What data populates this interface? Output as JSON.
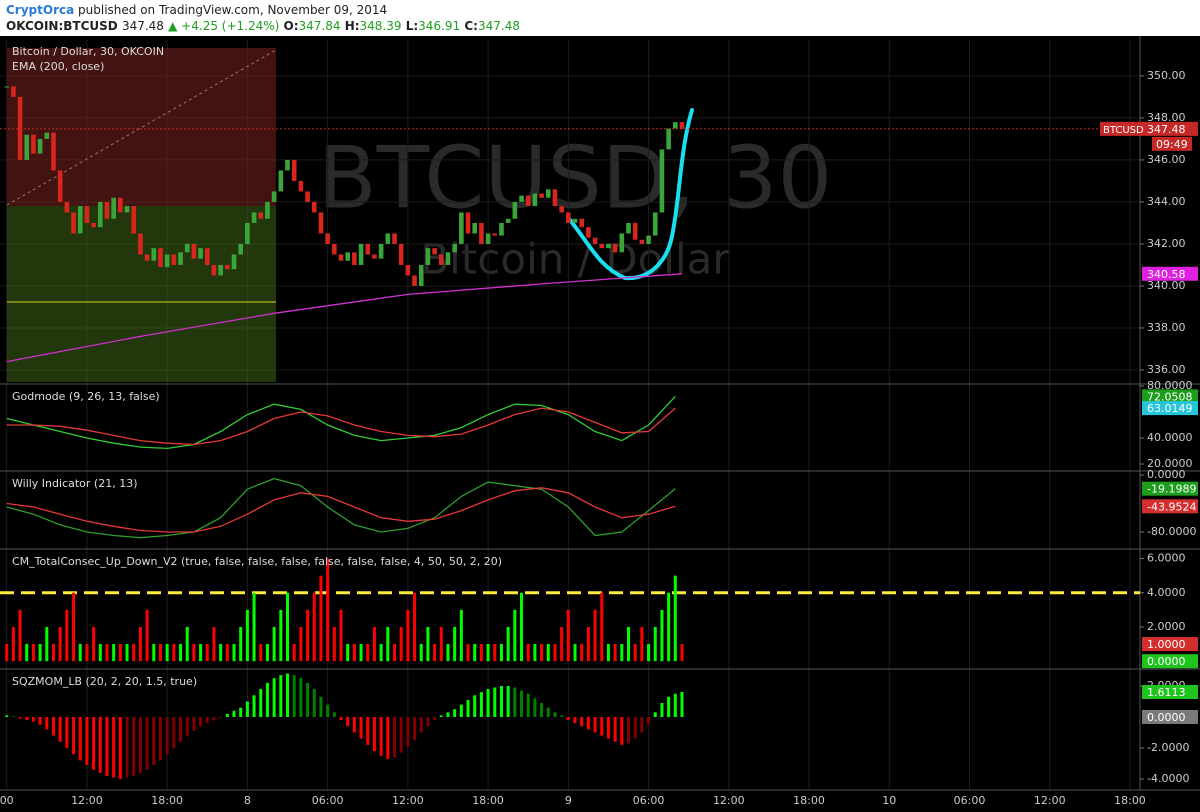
{
  "header": {
    "author": "CryptOrca",
    "published": "published on TradingView.com, November 09, 2014",
    "symbol": "OKCOIN:BTCUSD",
    "last": 347.48,
    "change": "▲ +4.25 (+1.24%)",
    "open_label": "O:",
    "open": 347.84,
    "high_label": "H:",
    "high": 348.39,
    "low_label": "L:",
    "low": 346.91,
    "close_label": "C:",
    "close": 347.48
  },
  "chart_data": [
    {
      "type": "candlestick",
      "title": "Bitcoin / Dollar, 30, OKCOIN",
      "subtitle": "EMA (200, close)",
      "watermark": "BTCUSD, 30",
      "watermark_subtitle": "Bitcoin / Dollar",
      "values": [
        349.5,
        349.0,
        346.0,
        347.2,
        346.3,
        347.0,
        347.3,
        345.5,
        344.0,
        343.5,
        342.5,
        343.8,
        343.0,
        342.8,
        344.0,
        343.2,
        344.2,
        343.5,
        343.8,
        342.5,
        341.5,
        341.2,
        341.8,
        340.9,
        341.5,
        341.0,
        341.6,
        342.0,
        341.3,
        341.8,
        341.0,
        340.5,
        341.0,
        340.8,
        341.5,
        342.0,
        343.0,
        343.5,
        343.2,
        344.0,
        344.5,
        345.5,
        346.0,
        345.0,
        344.5,
        344.0,
        343.5,
        342.5,
        342.0,
        341.5,
        341.2,
        341.6,
        341.0,
        342.0,
        341.5,
        341.3,
        342.0,
        342.5,
        342.0,
        341.0,
        340.5,
        340.0,
        341.0,
        341.8,
        341.5,
        341.0,
        341.6,
        342.0,
        343.5,
        342.5,
        343.0,
        342.0,
        342.5,
        342.4,
        343.0,
        343.2,
        344.0,
        344.3,
        343.8,
        344.4,
        344.2,
        344.6,
        343.8,
        343.5,
        343.0,
        343.2,
        342.8,
        342.3,
        342.0,
        341.8,
        342.0,
        341.6,
        342.5,
        343.0,
        342.2,
        342.0,
        342.4,
        343.5,
        346.5,
        347.5,
        347.8,
        347.48
      ],
      "up_color": "#3aa63a",
      "down_color": "#d9261c",
      "series": [
        {
          "color": "#d030d0",
          "x": [
            0,
            20,
            40,
            60,
            80,
            101
          ],
          "values": [
            336.4,
            337.6,
            338.7,
            339.6,
            340.1,
            340.58
          ]
        }
      ],
      "ylim": [
        335.38,
        351.71
      ],
      "yticks": [
        {
          "value": 336,
          "label": "336.00"
        },
        {
          "value": 338,
          "label": "338.00"
        },
        {
          "value": 340,
          "label": "340.00"
        },
        {
          "value": 342,
          "label": "342.00"
        },
        {
          "value": 344,
          "label": "344.00"
        },
        {
          "value": 346,
          "label": "346.00"
        },
        {
          "value": 348,
          "label": "348.00"
        },
        {
          "value": 350,
          "label": "350.00"
        }
      ],
      "grid": true,
      "last_tag": {
        "symbol": "BTCUSD",
        "value": 347.48,
        "time": "09:49",
        "color": "#c62828"
      },
      "tags": [
        {
          "value": 340.58,
          "color": "#e020e0"
        }
      ]
    },
    {
      "type": "line",
      "title": "Godmode (9, 26, 13, false)",
      "x": [
        0,
        4,
        8,
        12,
        16,
        20,
        24,
        28,
        32,
        36,
        40,
        44,
        48,
        52,
        56,
        60,
        64,
        68,
        72,
        76,
        80,
        84,
        88,
        92,
        96,
        100
      ],
      "series": [
        {
          "color": "#33cc33",
          "values": [
            55,
            50,
            45,
            40,
            36,
            33,
            32,
            35,
            45,
            58,
            66,
            62,
            50,
            42,
            38,
            40,
            42,
            48,
            58,
            66,
            65,
            58,
            45,
            38,
            50,
            72
          ]
        },
        {
          "color": "#e53935",
          "values": [
            50,
            50,
            49,
            46,
            42,
            38,
            36,
            35,
            38,
            45,
            55,
            60,
            57,
            50,
            45,
            42,
            41,
            43,
            50,
            58,
            63,
            60,
            52,
            44,
            45,
            63
          ]
        }
      ],
      "ylim": [
        15.4,
        80.8
      ],
      "yticks": [
        {
          "value": 80,
          "label": "80.0000"
        },
        {
          "value": 40,
          "label": "40.0000"
        },
        {
          "value": 20,
          "label": "20.0000"
        }
      ],
      "grid": false,
      "tags": [
        {
          "value": 72.0508,
          "color": "#1b9e1b"
        },
        {
          "value": 63.0149,
          "color": "#26c6da"
        }
      ]
    },
    {
      "type": "line",
      "title": "Willy Indicator (21, 13)",
      "x": [
        0,
        4,
        8,
        12,
        16,
        20,
        24,
        28,
        32,
        36,
        40,
        44,
        48,
        52,
        56,
        60,
        64,
        68,
        72,
        76,
        80,
        84,
        88,
        92,
        96,
        100
      ],
      "series": [
        {
          "color": "#2e9e2e",
          "values": [
            -45,
            -55,
            -70,
            -80,
            -85,
            -88,
            -85,
            -80,
            -60,
            -20,
            -5,
            -15,
            -45,
            -70,
            -80,
            -75,
            -60,
            -30,
            -10,
            -15,
            -20,
            -45,
            -85,
            -80,
            -50,
            -19.2
          ]
        },
        {
          "color": "#e53935",
          "values": [
            -40,
            -45,
            -55,
            -65,
            -72,
            -78,
            -80,
            -80,
            -72,
            -55,
            -35,
            -25,
            -30,
            -45,
            -60,
            -65,
            -62,
            -50,
            -35,
            -22,
            -18,
            -25,
            -45,
            -60,
            -55,
            -43.95
          ]
        }
      ],
      "ylim": [
        -102.5,
        4.2
      ],
      "yticks": [
        {
          "value": 0,
          "label": "0.0000"
        },
        {
          "value": -80,
          "label": "-80.0000"
        }
      ],
      "grid": false,
      "tags": [
        {
          "value": -19.1989,
          "color": "#1b9e1b"
        },
        {
          "value": -43.9524,
          "color": "#d32f2f"
        }
      ]
    },
    {
      "type": "bar",
      "title": "CM_TotalConsec_Up_Down_V2 (true, false, false, false, false, false, false, 4, 50, 50, 2, 20)",
      "values": [
        1,
        2,
        3,
        1,
        1,
        1,
        2,
        1,
        2,
        3,
        4,
        1,
        1,
        2,
        1,
        1,
        1,
        1,
        1,
        1,
        2,
        3,
        1,
        1,
        1,
        1,
        1,
        2,
        1,
        1,
        1,
        2,
        1,
        1,
        1,
        2,
        3,
        4,
        1,
        1,
        2,
        3,
        4,
        1,
        2,
        3,
        4,
        5,
        6,
        2,
        3,
        1,
        1,
        1,
        1,
        2,
        1,
        2,
        1,
        2,
        3,
        4,
        1,
        2,
        1,
        2,
        1,
        2,
        3,
        1,
        1,
        1,
        1,
        1,
        1,
        2,
        3,
        4,
        1,
        1,
        1,
        1,
        1,
        2,
        3,
        1,
        1,
        2,
        3,
        4,
        1,
        1,
        1,
        2,
        1,
        2,
        1,
        2,
        3,
        4,
        5,
        1
      ],
      "colors": [
        "#f00",
        "#f00",
        "#f00",
        "#0f0",
        "#f00",
        "#0f0",
        "#0f0",
        "#f00",
        "#f00",
        "#f00",
        "#f00",
        "#0f0",
        "#f00",
        "#f00",
        "#0f0",
        "#f00",
        "#0f0",
        "#f00",
        "#0f0",
        "#f00",
        "#f00",
        "#f00",
        "#0f0",
        "#f00",
        "#0f0",
        "#f00",
        "#0f0",
        "#0f0",
        "#f00",
        "#0f0",
        "#f00",
        "#f00",
        "#0f0",
        "#f00",
        "#0f0",
        "#0f0",
        "#0f0",
        "#0f0",
        "#f00",
        "#0f0",
        "#0f0",
        "#0f0",
        "#0f0",
        "#f00",
        "#f00",
        "#f00",
        "#f00",
        "#f00",
        "#f00",
        "#f00",
        "#f00",
        "#0f0",
        "#f00",
        "#0f0",
        "#f00",
        "#f00",
        "#0f0",
        "#0f0",
        "#f00",
        "#f00",
        "#f00",
        "#f00",
        "#0f0",
        "#0f0",
        "#f00",
        "#f00",
        "#0f0",
        "#0f0",
        "#0f0",
        "#f00",
        "#0f0",
        "#f00",
        "#0f0",
        "#f00",
        "#0f0",
        "#0f0",
        "#0f0",
        "#0f0",
        "#f00",
        "#0f0",
        "#f00",
        "#0f0",
        "#f00",
        "#f00",
        "#f00",
        "#0f0",
        "#f00",
        "#f00",
        "#f00",
        "#f00",
        "#0f0",
        "#f00",
        "#0f0",
        "#0f0",
        "#f00",
        "#f00",
        "#0f0",
        "#0f0",
        "#0f0",
        "#0f0",
        "#0f0",
        "#f00"
      ],
      "level": {
        "value": 4,
        "color": "#ffeb3b"
      },
      "ylim": [
        -0.4,
        6.5
      ],
      "yticks": [
        {
          "value": 6,
          "label": "6.0000"
        },
        {
          "value": 4,
          "label": "4.0000"
        },
        {
          "value": 2,
          "label": "2.0000"
        }
      ],
      "grid": false,
      "tags": [
        {
          "value": 1,
          "label": "1.0000",
          "color": "#d32f2f"
        },
        {
          "value": 0,
          "label": "0.0000",
          "color": "#1fc41f"
        }
      ]
    },
    {
      "type": "bar",
      "title": "SQZMOM_LB (20, 2, 20, 1.5, true)",
      "values": [
        0.1,
        0.05,
        -0.1,
        -0.2,
        -0.3,
        -0.5,
        -0.8,
        -1.2,
        -1.6,
        -2.0,
        -2.4,
        -2.8,
        -3.1,
        -3.4,
        -3.6,
        -3.8,
        -3.9,
        -4.0,
        -3.9,
        -3.8,
        -3.6,
        -3.4,
        -3.1,
        -2.8,
        -2.4,
        -2.0,
        -1.6,
        -1.2,
        -0.9,
        -0.6,
        -0.4,
        -0.2,
        -0.1,
        0.2,
        0.4,
        0.6,
        1.0,
        1.4,
        1.8,
        2.2,
        2.5,
        2.7,
        2.8,
        2.7,
        2.5,
        2.2,
        1.8,
        1.3,
        0.8,
        0.3,
        -0.2,
        -0.6,
        -1.0,
        -1.4,
        -1.8,
        -2.2,
        -2.5,
        -2.7,
        -2.6,
        -2.3,
        -1.9,
        -1.5,
        -1.0,
        -0.6,
        -0.2,
        0.1,
        0.3,
        0.5,
        0.8,
        1.1,
        1.4,
        1.6,
        1.8,
        1.9,
        2.0,
        2.0,
        1.9,
        1.7,
        1.5,
        1.2,
        0.9,
        0.6,
        0.3,
        0.1,
        -0.2,
        -0.4,
        -0.6,
        -0.8,
        -1.0,
        -1.2,
        -1.4,
        -1.6,
        -1.8,
        -1.7,
        -1.4,
        -1.0,
        -0.5,
        0.3,
        0.9,
        1.3,
        1.5,
        1.6113
      ],
      "palette": [
        "#00ff00",
        "#008000",
        "#ff0000",
        "#800000"
      ],
      "ylim": [
        -4.71,
        3.03
      ],
      "yticks": [
        {
          "value": 2,
          "label": "2.0000"
        },
        {
          "value": -2,
          "label": "-2.0000"
        },
        {
          "value": -4,
          "label": "-4.0000"
        }
      ],
      "grid": false,
      "tags": [
        {
          "value": 1.6113,
          "color": "#1fc41f"
        },
        {
          "value": 0,
          "label": "0.0000",
          "color": "#7a7a7a"
        }
      ],
      "xlim": [
        -1,
        169.5
      ],
      "xticks": [
        {
          "value": 0,
          "label": "00"
        },
        {
          "value": 12,
          "label": "12:00"
        },
        {
          "value": 24,
          "label": "18:00"
        },
        {
          "value": 36,
          "label": "8"
        },
        {
          "value": 48,
          "label": "06:00"
        },
        {
          "value": 60,
          "label": "12:00"
        },
        {
          "value": 72,
          "label": "18:00"
        },
        {
          "value": 84,
          "label": "9"
        },
        {
          "value": 96,
          "label": "06:00"
        },
        {
          "value": 108,
          "label": "12:00"
        },
        {
          "value": 120,
          "label": "18:00"
        },
        {
          "value": 132,
          "label": "10"
        },
        {
          "value": 144,
          "label": "06:00"
        },
        {
          "value": 156,
          "label": "12:00"
        },
        {
          "value": 168,
          "label": "18:00"
        }
      ]
    }
  ]
}
